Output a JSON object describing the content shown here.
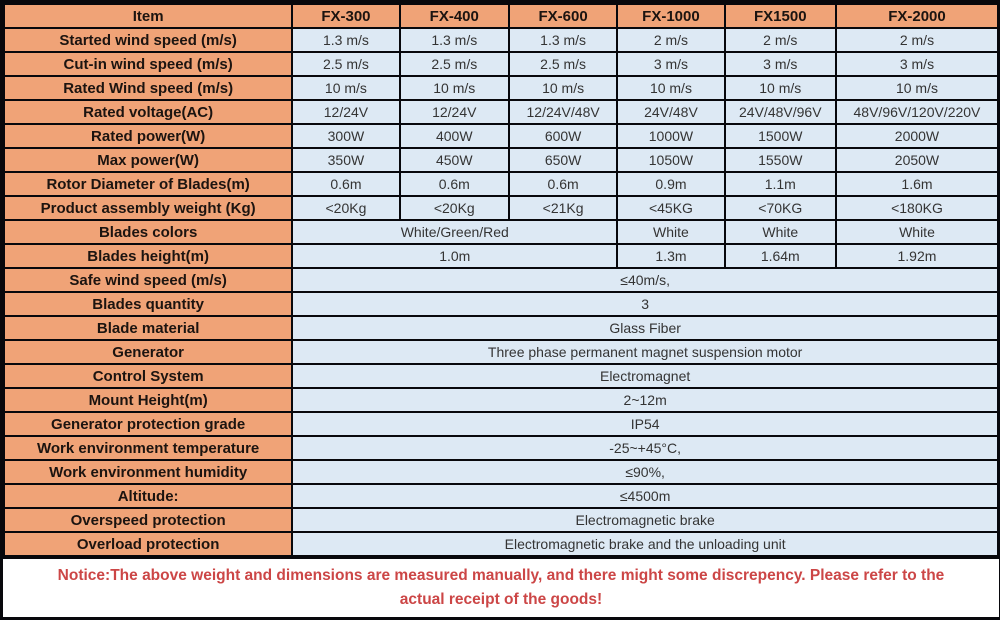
{
  "table": {
    "columns": [
      {
        "label": "Item"
      },
      {
        "label": "FX-300"
      },
      {
        "label": "FX-400"
      },
      {
        "label": "FX-600"
      },
      {
        "label": "FX-1000"
      },
      {
        "label": "FX1500"
      },
      {
        "label": "FX-2000"
      }
    ],
    "rows": [
      {
        "label": "Started wind speed (m/s)",
        "cells": [
          {
            "text": "1.3 m/s"
          },
          {
            "text": "1.3 m/s"
          },
          {
            "text": "1.3 m/s"
          },
          {
            "text": "2 m/s"
          },
          {
            "text": "2 m/s"
          },
          {
            "text": "2 m/s"
          }
        ]
      },
      {
        "label": "Cut-in wind speed (m/s)",
        "cells": [
          {
            "text": "2.5 m/s"
          },
          {
            "text": "2.5 m/s"
          },
          {
            "text": "2.5 m/s"
          },
          {
            "text": "3 m/s"
          },
          {
            "text": "3 m/s"
          },
          {
            "text": "3 m/s"
          }
        ]
      },
      {
        "label": "Rated Wind speed (m/s)",
        "cells": [
          {
            "text": "10 m/s"
          },
          {
            "text": "10 m/s"
          },
          {
            "text": "10 m/s"
          },
          {
            "text": "10 m/s"
          },
          {
            "text": "10 m/s"
          },
          {
            "text": "10 m/s"
          }
        ]
      },
      {
        "label": "Rated voltage(AC)",
        "cells": [
          {
            "text": "12/24V"
          },
          {
            "text": "12/24V"
          },
          {
            "text": "12/24V/48V"
          },
          {
            "text": "24V/48V"
          },
          {
            "text": "24V/48V/96V"
          },
          {
            "text": "48V/96V/120V/220V"
          }
        ]
      },
      {
        "label": "Rated power(W)",
        "cells": [
          {
            "text": "300W"
          },
          {
            "text": "400W"
          },
          {
            "text": "600W"
          },
          {
            "text": "1000W"
          },
          {
            "text": "1500W"
          },
          {
            "text": "2000W"
          }
        ]
      },
      {
        "label": "Max power(W)",
        "cells": [
          {
            "text": "350W"
          },
          {
            "text": "450W"
          },
          {
            "text": "650W"
          },
          {
            "text": "1050W"
          },
          {
            "text": "1550W"
          },
          {
            "text": "2050W"
          }
        ]
      },
      {
        "label": "Rotor Diameter of Blades(m)",
        "cells": [
          {
            "text": "0.6m"
          },
          {
            "text": "0.6m"
          },
          {
            "text": "0.6m"
          },
          {
            "text": "0.9m"
          },
          {
            "text": "1.1m"
          },
          {
            "text": "1.6m"
          }
        ]
      },
      {
        "label": "Product assembly weight (Kg)",
        "cells": [
          {
            "text": "<20Kg"
          },
          {
            "text": "<20Kg"
          },
          {
            "text": "<21Kg"
          },
          {
            "text": "<45KG"
          },
          {
            "text": "<70KG"
          },
          {
            "text": "<180KG"
          }
        ]
      },
      {
        "label": "Blades colors",
        "cells": [
          {
            "text": "White/Green/Red",
            "span": 3
          },
          {
            "text": "White"
          },
          {
            "text": "White"
          },
          {
            "text": "White"
          }
        ]
      },
      {
        "label": "Blades height(m)",
        "cells": [
          {
            "text": "1.0m",
            "span": 3
          },
          {
            "text": "1.3m"
          },
          {
            "text": "1.64m"
          },
          {
            "text": "1.92m"
          }
        ]
      },
      {
        "label": "Safe wind speed (m/s)",
        "cells": [
          {
            "text": "≤40m/s,",
            "span": 6
          }
        ]
      },
      {
        "label": "Blades quantity",
        "cells": [
          {
            "text": "3",
            "span": 6
          }
        ]
      },
      {
        "label": "Blade material",
        "cells": [
          {
            "text": "Glass Fiber",
            "span": 6
          }
        ]
      },
      {
        "label": "Generator",
        "cells": [
          {
            "text": "Three phase permanent magnet suspension motor",
            "span": 6
          }
        ]
      },
      {
        "label": "Control System",
        "cells": [
          {
            "text": "Electromagnet",
            "span": 6
          }
        ]
      },
      {
        "label": "Mount Height(m)",
        "cells": [
          {
            "text": "2~12m",
            "span": 6
          }
        ]
      },
      {
        "label": "Generator protection grade",
        "cells": [
          {
            "text": "IP54",
            "span": 6
          }
        ]
      },
      {
        "label": "Work environment temperature",
        "cells": [
          {
            "text": "-25~+45°C,",
            "span": 6
          }
        ]
      },
      {
        "label": "Work environment humidity",
        "cells": [
          {
            "text": "≤90%,",
            "span": 6
          }
        ]
      },
      {
        "label": "Altitude:",
        "cells": [
          {
            "text": "≤4500m",
            "span": 6
          }
        ]
      },
      {
        "label": "Overspeed protection",
        "cells": [
          {
            "text": "Electromagnetic brake",
            "span": 6
          }
        ]
      },
      {
        "label": "Overload protection",
        "cells": [
          {
            "text": "Electromagnetic brake and the unloading unit",
            "span": 6
          }
        ]
      }
    ]
  },
  "notice": {
    "text": "Notice:The above weight and dimensions are measured manually, and there might some discrepency. Please refer to the actual receipt of the goods!"
  },
  "colors": {
    "label_bg": "#f0a377",
    "value_bg": "#dde9f4",
    "border": "#08080c",
    "notice_red": "#cc4646"
  }
}
